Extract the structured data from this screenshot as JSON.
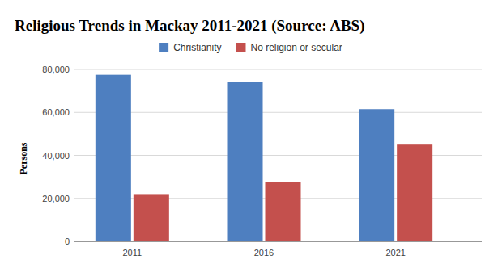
{
  "chart_data": {
    "type": "bar",
    "title": "Religious Trends in Mackay 2011-2021 (Source: ABS)",
    "y_label": "Persons",
    "categories": [
      "2011",
      "2016",
      "2021"
    ],
    "series": [
      {
        "name": "Christianity",
        "color": "#4e7fc0",
        "values": [
          77500,
          74000,
          61500
        ]
      },
      {
        "name": "No religion or secular",
        "color": "#c4504d",
        "values": [
          22000,
          27500,
          45000
        ]
      }
    ],
    "ylim": [
      0,
      80000
    ],
    "yticks": [
      0,
      {
        "value": 20000,
        "label": "20,000"
      },
      {
        "value": 40000,
        "label": "40,000"
      },
      {
        "value": 60000,
        "label": "60,000"
      },
      {
        "value": 80000,
        "label": "80,000"
      }
    ],
    "grid": true,
    "legend": "top"
  }
}
